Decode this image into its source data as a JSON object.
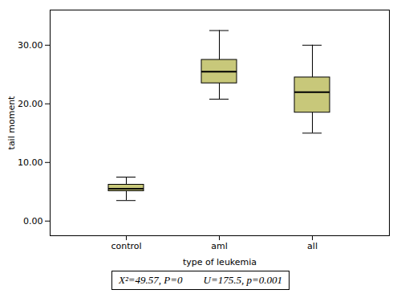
{
  "chart_data": {
    "type": "box",
    "categories": [
      "control",
      "aml",
      "all"
    ],
    "whislo": [
      3.5,
      20.8,
      15.0
    ],
    "q1": [
      5.1,
      23.5,
      18.5
    ],
    "med": [
      5.5,
      25.5,
      22.0
    ],
    "q3": [
      6.2,
      27.5,
      24.5
    ],
    "whishi": [
      7.5,
      32.5,
      30.0
    ],
    "color": "#c8c87a",
    "xlabel": "type of leukemia",
    "ylabel": "tail moment",
    "ylim": [
      -2.5,
      36
    ],
    "yticks": [
      {
        "value": 0.0,
        "label": "0.00"
      },
      {
        "value": 10.0,
        "label": "10.00"
      },
      {
        "value": 20.0,
        "label": "20.00"
      },
      {
        "value": 30.0,
        "label": "30.00"
      }
    ],
    "grid": false,
    "annotation": "X²=49.57, P=0        U=175.5, p=0.001"
  }
}
